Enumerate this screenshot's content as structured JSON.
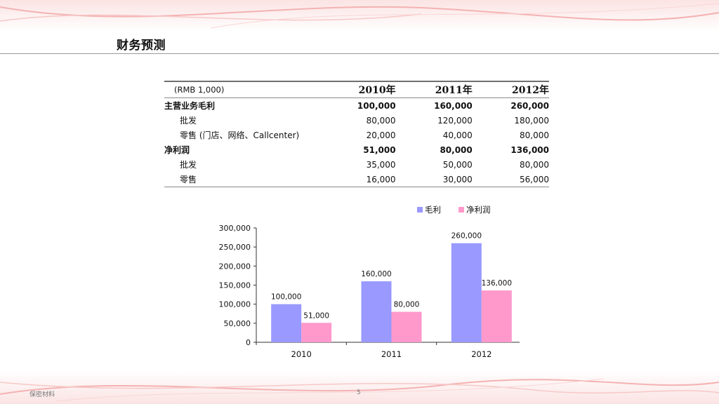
{
  "page": {
    "title": "财务预测",
    "footer_left": "保密材料",
    "page_number": "5"
  },
  "table": {
    "unit_label": "(RMB 1,000)",
    "years": [
      "2010年",
      "2011年",
      "2012年"
    ],
    "rows": [
      {
        "label": "主营业务毛利",
        "values": [
          "100,000",
          "160,000",
          "260,000"
        ],
        "style": "major"
      },
      {
        "label": "批发",
        "values": [
          "80,000",
          "120,000",
          "180,000"
        ],
        "style": "sub"
      },
      {
        "label": "零售 (门店、网络、Callcenter)",
        "values": [
          "20,000",
          "40,000",
          "80,000"
        ],
        "style": "sub"
      },
      {
        "label": "净利润",
        "values": [
          "51,000",
          "80,000",
          "136,000"
        ],
        "style": "major"
      },
      {
        "label": "批发",
        "values": [
          "35,000",
          "50,000",
          "80,000"
        ],
        "style": "sub"
      },
      {
        "label": "零售",
        "values": [
          "16,000",
          "30,000",
          "56,000"
        ],
        "style": "sub"
      }
    ]
  },
  "chart_data": {
    "type": "bar",
    "categories": [
      "2010",
      "2011",
      "2012"
    ],
    "series": [
      {
        "name": "毛利",
        "values": [
          100000,
          160000,
          260000
        ],
        "color": "#9999ff"
      },
      {
        "name": "净利润",
        "values": [
          51000,
          80000,
          136000
        ],
        "color": "#ff99cc"
      }
    ],
    "ylim": [
      0,
      300000
    ],
    "yticks": [
      0,
      50000,
      100000,
      150000,
      200000,
      250000,
      300000
    ],
    "ytick_labels": [
      "0",
      "50,000",
      "100,000",
      "150,000",
      "200,000",
      "250,000",
      "300,000"
    ],
    "data_labels": [
      [
        "100,000",
        "160,000",
        "260,000"
      ],
      [
        "51,000",
        "80,000",
        "136,000"
      ]
    ],
    "legend_position": "top-right",
    "grid": false
  }
}
